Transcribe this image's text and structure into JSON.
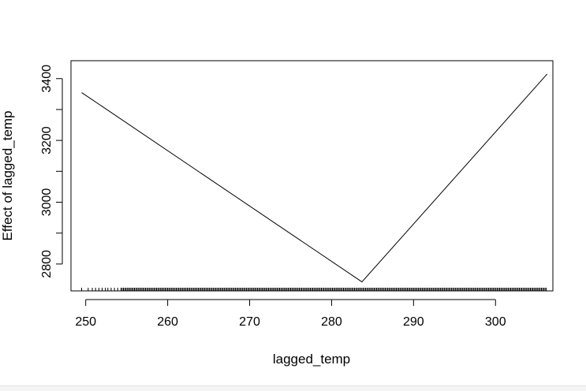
{
  "chart_data": {
    "type": "line",
    "xlabel": "lagged_temp",
    "ylabel": "Effect of lagged_temp",
    "xlim": [
      248.2,
      307.0
    ],
    "ylim": [
      2713,
      3458
    ],
    "xticks": [
      250,
      260,
      270,
      280,
      290,
      300
    ],
    "yticks": [
      2800,
      3000,
      3200,
      3400
    ],
    "series": [
      {
        "x": [
          249.5,
          283.7,
          306.3
        ],
        "y": [
          3355,
          2742,
          3415
        ]
      }
    ],
    "rug": {
      "x": [
        249.5,
        250.3,
        250.8,
        251.2,
        251.6,
        252.0,
        252.4,
        252.7,
        253.1,
        253.5,
        253.9,
        254.3
      ]
    },
    "grid": false,
    "colors": {
      "line": "#000000",
      "axis": "#000000"
    }
  }
}
